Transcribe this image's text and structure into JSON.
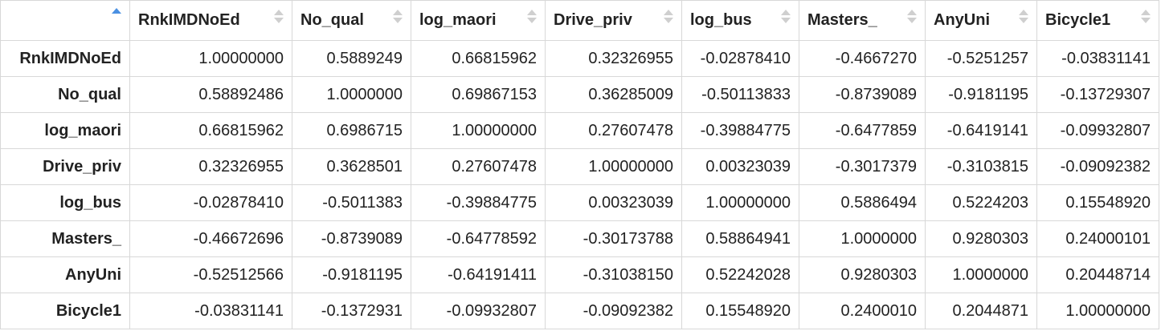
{
  "table": {
    "columns": [
      "RnkIMDNoEd",
      "No_qual",
      "log_maori",
      "Drive_priv",
      "log_bus",
      "Masters_",
      "AnyUni",
      "Bicycle1"
    ],
    "sort": {
      "column": "row-index",
      "direction": "ascending"
    },
    "accent_color": "#4a90e2",
    "rows": [
      {
        "label": "RnkIMDNoEd",
        "values": [
          "1.00000000",
          "0.5889249",
          "0.66815962",
          "0.32326955",
          "-0.02878410",
          "-0.4667270",
          "-0.5251257",
          "-0.03831141"
        ]
      },
      {
        "label": "No_qual",
        "values": [
          "0.58892486",
          "1.0000000",
          "0.69867153",
          "0.36285009",
          "-0.50113833",
          "-0.8739089",
          "-0.9181195",
          "-0.13729307"
        ]
      },
      {
        "label": "log_maori",
        "values": [
          "0.66815962",
          "0.6986715",
          "1.00000000",
          "0.27607478",
          "-0.39884775",
          "-0.6477859",
          "-0.6419141",
          "-0.09932807"
        ]
      },
      {
        "label": "Drive_priv",
        "values": [
          "0.32326955",
          "0.3628501",
          "0.27607478",
          "1.00000000",
          "0.00323039",
          "-0.3017379",
          "-0.3103815",
          "-0.09092382"
        ]
      },
      {
        "label": "log_bus",
        "values": [
          "-0.02878410",
          "-0.5011383",
          "-0.39884775",
          "0.00323039",
          "1.00000000",
          "0.5886494",
          "0.5224203",
          "0.15548920"
        ]
      },
      {
        "label": "Masters_",
        "values": [
          "-0.46672696",
          "-0.8739089",
          "-0.64778592",
          "-0.30173788",
          "0.58864941",
          "1.0000000",
          "0.9280303",
          "0.24000101"
        ]
      },
      {
        "label": "AnyUni",
        "values": [
          "-0.52512566",
          "-0.9181195",
          "-0.64191411",
          "-0.31038150",
          "0.52242028",
          "0.9280303",
          "1.0000000",
          "0.20448714"
        ]
      },
      {
        "label": "Bicycle1",
        "values": [
          "-0.03831141",
          "-0.1372931",
          "-0.09932807",
          "-0.09092382",
          "0.15548920",
          "0.2400010",
          "0.2044871",
          "1.00000000"
        ]
      }
    ]
  }
}
